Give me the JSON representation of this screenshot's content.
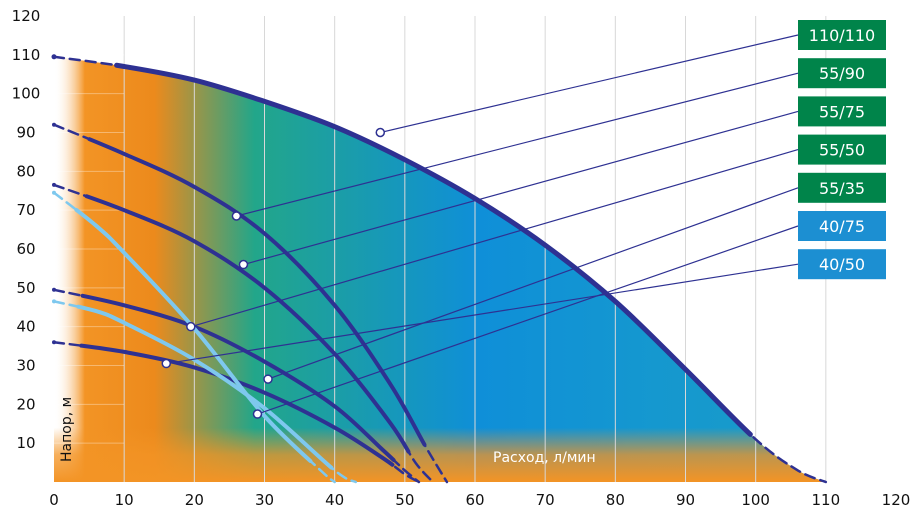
{
  "chart_data": {
    "type": "line",
    "title": "",
    "xlabel": "Расход, л/мин",
    "ylabel": "Напор, м",
    "xlim": [
      0,
      120
    ],
    "ylim": [
      0,
      120
    ],
    "x_ticks": [
      "0",
      "10",
      "20",
      "30",
      "40",
      "50",
      "60",
      "70",
      "80",
      "90",
      "100",
      "110",
      "120"
    ],
    "y_ticks": [
      "10",
      "20",
      "30",
      "40",
      "50",
      "60",
      "70",
      "80",
      "90",
      "100",
      "110",
      "120"
    ],
    "grid": "vertical",
    "legend": "right",
    "series": [
      {
        "name": "110/110",
        "color": "#2e3192",
        "tag_color": "#00844a",
        "x": [
          0,
          10,
          20,
          30,
          40,
          50,
          60,
          70,
          80,
          90,
          100,
          106,
          110
        ],
        "y": [
          109.5,
          107,
          103.5,
          98,
          91.5,
          83,
          73,
          61,
          46.5,
          29,
          11,
          3,
          0
        ],
        "marker": [
          46.5,
          90
        ]
      },
      {
        "name": "55/90",
        "color": "#2e3192",
        "tag_color": "#00844a",
        "x": [
          0,
          10,
          20,
          30,
          40,
          48,
          53,
          56
        ],
        "y": [
          92,
          84.5,
          76,
          64,
          45.5,
          25,
          9,
          0
        ],
        "marker": [
          26,
          68.5
        ]
      },
      {
        "name": "55/75",
        "color": "#2e3192",
        "tag_color": "#00844a",
        "x": [
          0,
          10,
          20,
          30,
          40,
          48,
          51.5,
          54
        ],
        "y": [
          76.5,
          70,
          62,
          50,
          33,
          15,
          5,
          0
        ],
        "marker": [
          27,
          56
        ]
      },
      {
        "name": "55/50",
        "color": "#2e3192",
        "tag_color": "#00844a",
        "x": [
          0,
          10,
          20,
          30,
          40,
          47,
          50,
          52
        ],
        "y": [
          49.5,
          45.5,
          40,
          31,
          19.5,
          8,
          3,
          0
        ],
        "marker": [
          19.5,
          40
        ]
      },
      {
        "name": "55/35",
        "color": "#2e3192",
        "tag_color": "#00844a",
        "x": [
          0,
          10,
          20,
          30,
          40,
          47,
          50,
          52
        ],
        "y": [
          36,
          33.5,
          29.5,
          23,
          14,
          6,
          2,
          0
        ],
        "marker": [
          30.5,
          26.5
        ]
      },
      {
        "name": "40/75",
        "color": "#7ec8ee",
        "tag_color": "#1c8fd2",
        "x": [
          0,
          6,
          10,
          20,
          30,
          38,
          40
        ],
        "y": [
          74.5,
          66,
          59,
          39.5,
          17,
          3,
          0
        ],
        "marker": [
          29,
          17.5
        ]
      },
      {
        "name": "40/50",
        "color": "#7ec8ee",
        "tag_color": "#1c8fd2",
        "x": [
          0,
          6,
          10,
          20,
          30,
          40,
          43
        ],
        "y": [
          46.5,
          44,
          41,
          31.5,
          19,
          3,
          0
        ],
        "marker": [
          16,
          30.5
        ]
      }
    ]
  }
}
